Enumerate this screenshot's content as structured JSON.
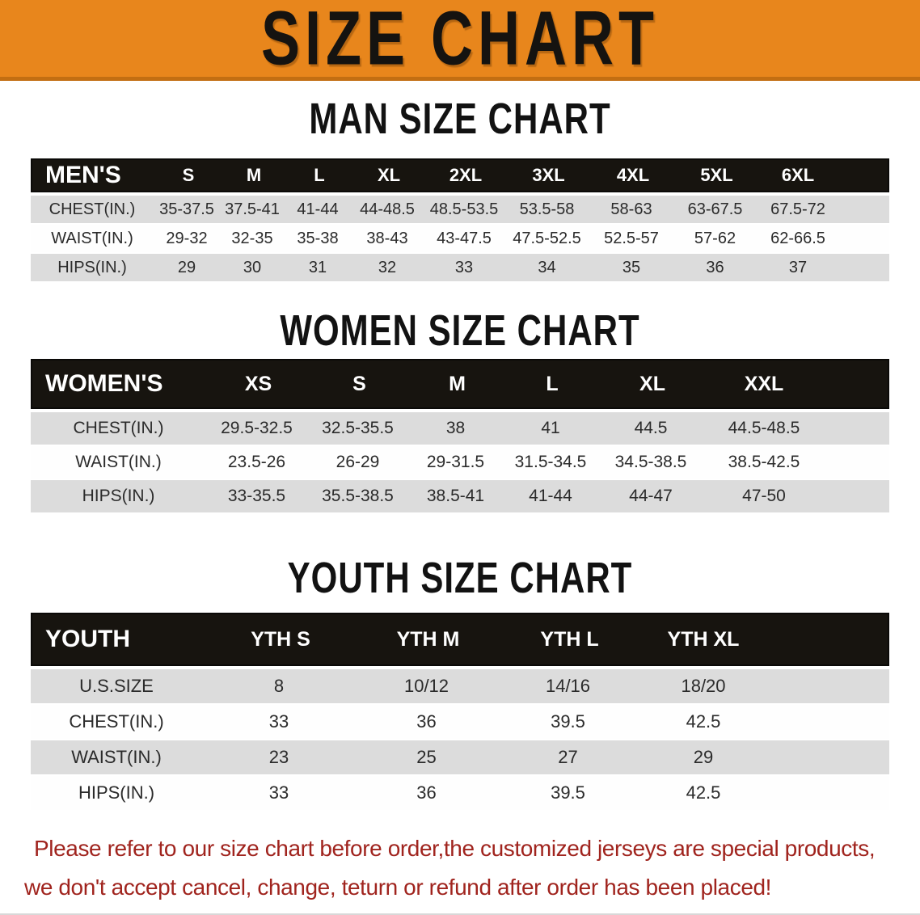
{
  "banner": {
    "title": "SIZE CHART"
  },
  "colors": {
    "banner_orange": "#E8861C",
    "banner_orange_dark": "#C26E12",
    "table_header_black": "#17140F",
    "row_gray": "#DCDCDC",
    "row_white": "#FEFEFE",
    "disclaimer_red": "#A0241E"
  },
  "men": {
    "title": "MAN SIZE CHART",
    "header": {
      "label": "MEN'S",
      "sizes": [
        "S",
        "M",
        "L",
        "XL",
        "2XL",
        "3XL",
        "4XL",
        "5XL",
        "6XL"
      ]
    },
    "rows": [
      {
        "label": "CHEST(IN.)",
        "values": [
          "35-37.5",
          "37.5-41",
          "41-44",
          "44-48.5",
          "48.5-53.5",
          "53.5-58",
          "58-63",
          "63-67.5",
          "67.5-72"
        ]
      },
      {
        "label": "WAIST(IN.)",
        "values": [
          "29-32",
          "32-35",
          "35-38",
          "38-43",
          "43-47.5",
          "47.5-52.5",
          "52.5-57",
          "57-62",
          "62-66.5"
        ]
      },
      {
        "label": "HIPS(IN.)",
        "values": [
          "29",
          "30",
          "31",
          "32",
          "33",
          "34",
          "35",
          "36",
          "37"
        ]
      }
    ]
  },
  "women": {
    "title": "WOMEN SIZE CHART",
    "header": {
      "label": "WOMEN'S",
      "sizes": [
        "XS",
        "S",
        "M",
        "L",
        "XL",
        "XXL"
      ]
    },
    "rows": [
      {
        "label": "CHEST(IN.)",
        "values": [
          "29.5-32.5",
          "32.5-35.5",
          "38",
          "41",
          "44.5",
          "44.5-48.5"
        ]
      },
      {
        "label": "WAIST(IN.)",
        "values": [
          "23.5-26",
          "26-29",
          "29-31.5",
          "31.5-34.5",
          "34.5-38.5",
          "38.5-42.5"
        ]
      },
      {
        "label": "HIPS(IN.)",
        "values": [
          "33-35.5",
          "35.5-38.5",
          "38.5-41",
          "41-44",
          "44-47",
          "47-50"
        ]
      }
    ]
  },
  "youth": {
    "title": "YOUTH SIZE CHART",
    "header": {
      "label": "YOUTH",
      "sizes": [
        "YTH S",
        "YTH M",
        "YTH L",
        "YTH XL"
      ]
    },
    "rows": [
      {
        "label": "U.S.SIZE",
        "values": [
          "8",
          "10/12",
          "14/16",
          "18/20"
        ]
      },
      {
        "label": "CHEST(IN.)",
        "values": [
          "33",
          "36",
          "39.5",
          "42.5"
        ]
      },
      {
        "label": "WAIST(IN.)",
        "values": [
          "23",
          "25",
          "27",
          "29"
        ]
      },
      {
        "label": "HIPS(IN.)",
        "values": [
          "33",
          "36",
          "39.5",
          "42.5"
        ]
      }
    ]
  },
  "disclaimer": {
    "line1": "Please refer to our size chart before order,the customized jerseys are special products,",
    "line2": "we don't accept cancel, change, teturn or refund after order has been placed!"
  }
}
